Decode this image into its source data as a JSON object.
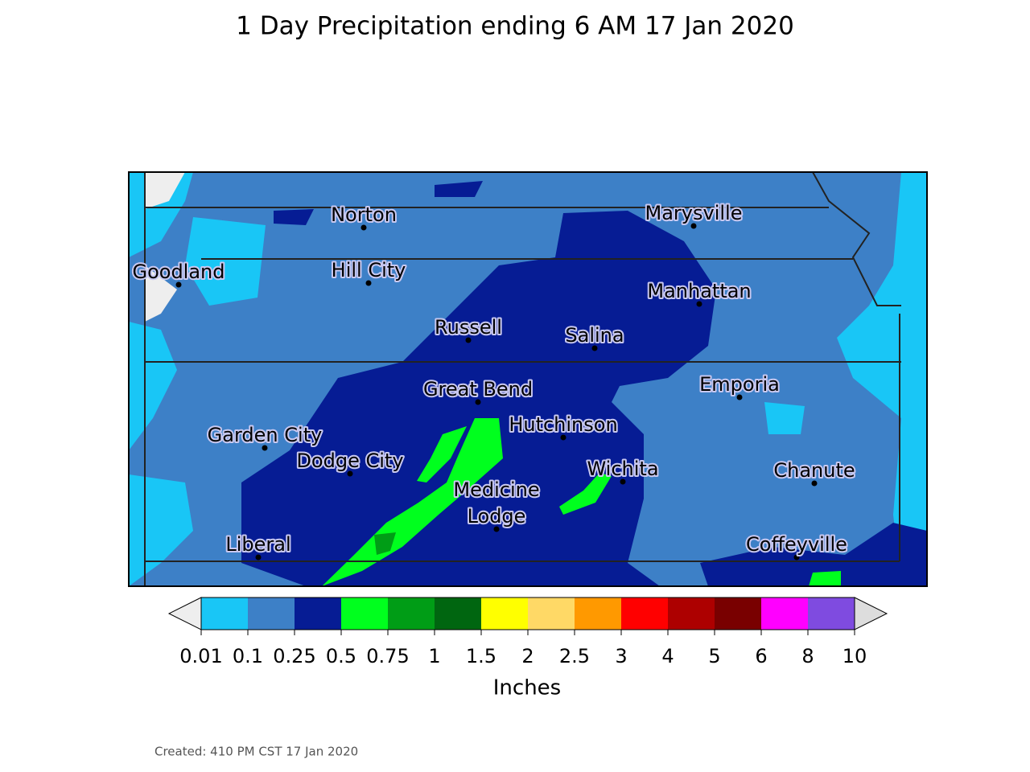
{
  "map": {
    "title": "1 Day Precipitation ending 6 AM 17 Jan 2020",
    "cities": [
      {
        "label": [
          "Norton"
        ]
      },
      {
        "label": [
          "Goodland"
        ]
      },
      {
        "label": [
          "Hill City"
        ]
      },
      {
        "label": [
          "Russell"
        ]
      },
      {
        "label": [
          "Salina"
        ]
      },
      {
        "label": [
          "Marysville"
        ]
      },
      {
        "label": [
          "Manhattan"
        ]
      },
      {
        "label": [
          "Emporia"
        ]
      },
      {
        "label": [
          "Great Bend"
        ]
      },
      {
        "label": [
          "Hutchinson"
        ]
      },
      {
        "label": [
          "Garden City"
        ]
      },
      {
        "label": [
          "Dodge City"
        ]
      },
      {
        "label": [
          "Wichita"
        ]
      },
      {
        "label": [
          "Chanute"
        ]
      },
      {
        "label": [
          "Medicine",
          "Lodge"
        ]
      },
      {
        "label": [
          "Liberal"
        ]
      },
      {
        "label": [
          "Coffeyville"
        ]
      }
    ],
    "colorbar": {
      "label": "Inches",
      "ticks": [
        0.01,
        0.1,
        0.25,
        0.5,
        0.75,
        1,
        1.5,
        2,
        2.5,
        3,
        4,
        5,
        6,
        8,
        10
      ],
      "colors": [
        "#19c6f6",
        "#3d80c7",
        "#061c94",
        "#00ff1e",
        "#009d16",
        "#006610",
        "#ffff00",
        "#ffd966",
        "#ff9900",
        "#ff0000",
        "#ad0000",
        "#790000",
        "#ff00ff",
        "#7f4be0"
      ],
      "under_color": "#eeeeee",
      "over_color": "#dddddd"
    },
    "footer": "Created: 410 PM CST 17 Jan 2020"
  }
}
